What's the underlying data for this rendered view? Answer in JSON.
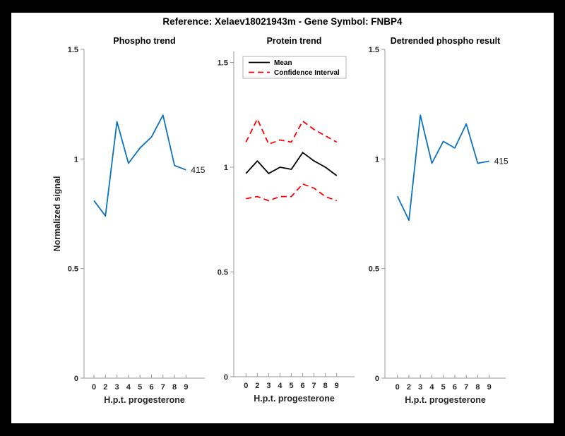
{
  "header": {
    "title": "Reference:  Xelaev18021943m - Gene Symbol:  FNBP4"
  },
  "colors": {
    "line_blue": "#0d72bd",
    "mean_black": "#000000",
    "ci_red": "#ff0000",
    "axis_gray": "#999999",
    "frame_black": "#000000",
    "figure_bg": "#ffffff"
  },
  "chart_data": [
    {
      "type": "line",
      "title": "Phospho trend",
      "xlabel": "H.p.t. progesterone",
      "ylabel": "Normalized signal",
      "x_tick_labels": [
        "0",
        "2",
        "3",
        "4",
        "5",
        "6",
        "7",
        "8",
        "9"
      ],
      "y_tick_values": [
        0,
        0.5,
        1,
        1.5
      ],
      "y_tick_labels": [
        "0",
        "0.5",
        "1",
        "1.5"
      ],
      "ylim": [
        0,
        1.5
      ],
      "grid": false,
      "end_label": "415",
      "series": [
        {
          "name": "phospho-signal",
          "color": "#0d72bd",
          "dash": "solid",
          "width": 1.8,
          "values": [
            0.81,
            0.74,
            1.17,
            0.98,
            1.05,
            1.1,
            1.2,
            0.97,
            0.95
          ]
        }
      ]
    },
    {
      "type": "line",
      "title": "Protein trend",
      "xlabel": "H.p.t. progesterone",
      "ylabel": "",
      "x_tick_labels": [
        "0",
        "2",
        "3",
        "4",
        "5",
        "6",
        "7",
        "8",
        "9"
      ],
      "y_tick_values": [
        0,
        0.5,
        1,
        1.5
      ],
      "y_tick_labels": [
        "0",
        "0.5",
        "1",
        "1.5"
      ],
      "ylim": [
        0,
        1.55
      ],
      "grid": false,
      "legend": {
        "position": "top-left",
        "items": [
          {
            "label": "Mean",
            "color": "#000000",
            "dash": "solid"
          },
          {
            "label": "Confidence Interval",
            "color": "#ff0000",
            "dash": "dashed"
          }
        ]
      },
      "series": [
        {
          "name": "mean",
          "color": "#000000",
          "dash": "solid",
          "width": 1.8,
          "values": [
            0.97,
            1.03,
            0.97,
            1.0,
            0.99,
            1.07,
            1.03,
            1.0,
            0.96
          ]
        },
        {
          "name": "ci-upper",
          "color": "#ff0000",
          "dash": "dashed",
          "width": 1.8,
          "values": [
            1.12,
            1.23,
            1.11,
            1.13,
            1.12,
            1.22,
            1.18,
            1.15,
            1.12
          ]
        },
        {
          "name": "ci-lower",
          "color": "#ff0000",
          "dash": "dashed",
          "width": 1.8,
          "values": [
            0.85,
            0.86,
            0.84,
            0.86,
            0.86,
            0.92,
            0.9,
            0.86,
            0.84
          ]
        }
      ]
    },
    {
      "type": "line",
      "title": "Detrended phospho result",
      "xlabel": "H.p.t. progesterone",
      "ylabel": "",
      "x_tick_labels": [
        "0",
        "2",
        "3",
        "4",
        "5",
        "6",
        "7",
        "8",
        "9"
      ],
      "y_tick_values": [
        0,
        0.5,
        1,
        1.5
      ],
      "y_tick_labels": [
        "0",
        "0.5",
        "1",
        "1.5"
      ],
      "ylim": [
        0,
        1.5
      ],
      "grid": false,
      "end_label": "415",
      "series": [
        {
          "name": "detrended-phospho-signal",
          "color": "#0d72bd",
          "dash": "solid",
          "width": 1.8,
          "values": [
            0.83,
            0.72,
            1.2,
            0.98,
            1.08,
            1.05,
            1.16,
            0.98,
            0.99
          ]
        }
      ]
    }
  ]
}
